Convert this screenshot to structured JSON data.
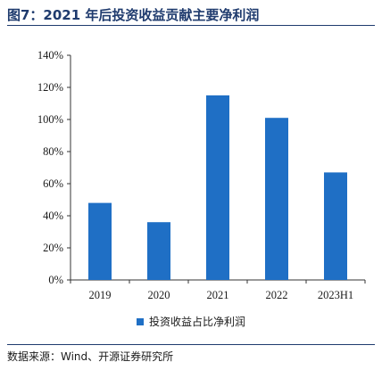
{
  "title": "图7：2021 年后投资收益贡献主要净利润",
  "source": "数据来源：Wind、开源证券研究所",
  "colors": {
    "bar": "#1f6fc5",
    "title": "#1f3b6e"
  },
  "chart_data": {
    "type": "bar",
    "title": "图7：2021 年后投资收益贡献主要净利润",
    "categories": [
      "2019",
      "2020",
      "2021",
      "2022",
      "2023H1"
    ],
    "series": [
      {
        "name": "投资收益占比净利润",
        "values": [
          48,
          36,
          115,
          101,
          67
        ]
      }
    ],
    "ylim": [
      0,
      140
    ],
    "yticks": [
      "0%",
      "20%",
      "40%",
      "60%",
      "80%",
      "100%",
      "120%",
      "140%"
    ],
    "grid": false,
    "legend": "bottom-center"
  }
}
